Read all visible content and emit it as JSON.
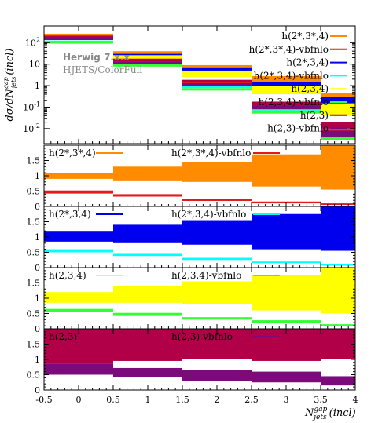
{
  "chart_data": {
    "type": "histogram_with_ratio_panels",
    "x_bins": [
      -0.5,
      0.5,
      1.5,
      2.5,
      3.5,
      4.0
    ],
    "xlim": [
      -0.5,
      4.0
    ],
    "x_ticks": [
      "-0.5",
      "0",
      "0.5",
      "1",
      "1.5",
      "2",
      "2.5",
      "3",
      "3.5",
      "4"
    ],
    "xlabel_main": "N",
    "xlabel_sup": "gap",
    "xlabel_sub": "jets",
    "xlabel_tail": "(incl)",
    "ylabel_main": "dσ/dN",
    "ylabel_sup": "gap",
    "ylabel_sub": "jets",
    "ylabel_tail": "(incl)",
    "main_y_scale": "log",
    "main_ylim": [
      0.002,
      600
    ],
    "main_y_ticks": [
      {
        "base": "10",
        "exp": "-2",
        "v": 0.01
      },
      {
        "base": "10",
        "exp": "-1",
        "v": 0.1
      },
      {
        "base": "1",
        "exp": "",
        "v": 1
      },
      {
        "base": "10",
        "exp": "",
        "v": 10
      },
      {
        "base": "10",
        "exp": "2",
        "v": 100
      }
    ],
    "generator_label": "Herwig 7.x.x",
    "generator_sublabel": "HJETS/ColorFull",
    "main_series": [
      {
        "name": "h(2*,3*,4)",
        "color": "#ff8c00",
        "lo": [
          140,
          22,
          4.5,
          0.9,
          0.13
        ],
        "hi": [
          260,
          40,
          9,
          2.8,
          0.45
        ]
      },
      {
        "name": "h(2*,3*,4)-vbfnlo",
        "color": "#e31a1c",
        "lo": [
          185,
          16,
          1.2,
          0.11,
          0.006
        ],
        "hi": [
          200,
          18,
          1.45,
          0.14,
          0.009
        ]
      },
      {
        "name": "h(2*,3,4)",
        "color": "#0000ee",
        "lo": [
          180,
          20,
          3.5,
          0.6,
          0.1
        ],
        "hi": [
          230,
          30,
          6.5,
          1.5,
          0.3
        ]
      },
      {
        "name": "h(2*,3,4)-vbfnlo",
        "color": "#00ffff",
        "lo": [
          105,
          9,
          0.8,
          0.07,
          0.005
        ],
        "hi": [
          115,
          10,
          0.95,
          0.09,
          0.007
        ]
      },
      {
        "name": "h(2,3,4)",
        "color": "#ffff00",
        "lo": [
          170,
          18,
          2.5,
          0.4,
          0.04
        ],
        "hi": [
          210,
          26,
          5.0,
          1.0,
          0.15
        ]
      },
      {
        "name": "h(2,3,4)-vbfnlo",
        "color": "#33ff33",
        "lo": [
          95,
          8,
          0.6,
          0.05,
          0.003
        ],
        "hi": [
          110,
          9.5,
          0.75,
          0.07,
          0.005
        ]
      },
      {
        "name": "h(2,3)",
        "color": "#b10048",
        "lo": [
          175,
          14,
          1.5,
          0.12,
          0.01
        ],
        "hi": [
          195,
          17,
          1.8,
          0.18,
          0.02
        ]
      },
      {
        "name": "h(2,3)-vbfnlo",
        "color": "#7b0a7b",
        "lo": [
          140,
          11,
          1.0,
          0.08,
          0.004
        ],
        "hi": [
          160,
          13,
          1.3,
          0.12,
          0.008
        ]
      }
    ],
    "ratio_ylim": [
      0,
      2.0
    ],
    "ratio_y_ticks": [
      "0",
      "0.5",
      "1",
      "1.5"
    ],
    "ratio_panels": [
      {
        "labels": [
          "h(2*,3*,4)",
          "h(2*,3*,4)-vbfnlo"
        ],
        "bands": [
          {
            "color": "#ff8c00",
            "lo": [
              0.9,
              0.85,
              0.8,
              0.65,
              0.55
            ],
            "hi": [
              1.1,
              1.3,
              1.45,
              1.7,
              2.0
            ]
          },
          {
            "color": "#e31a1c",
            "lo": [
              0.42,
              0.32,
              0.18,
              0.1,
              0.05
            ],
            "hi": [
              0.52,
              0.4,
              0.25,
              0.16,
              0.1
            ]
          }
        ]
      },
      {
        "labels": [
          "h(2*,3,4)",
          "h(2*,3,4)-vbfnlo"
        ],
        "bands": [
          {
            "color": "#0000ee",
            "lo": [
              0.85,
              0.8,
              0.75,
              0.6,
              0.55
            ],
            "hi": [
              1.2,
              1.4,
              1.55,
              1.75,
              2.0
            ]
          },
          {
            "color": "#00ffff",
            "lo": [
              0.5,
              0.38,
              0.25,
              0.15,
              0.08
            ],
            "hi": [
              0.6,
              0.45,
              0.32,
              0.2,
              0.12
            ]
          }
        ]
      },
      {
        "labels": [
          "h(2,3,4)",
          "h(2,3,4)-vbfnlo"
        ],
        "bands": [
          {
            "color": "#ffff00",
            "lo": [
              0.85,
              0.85,
              0.8,
              0.6,
              0.5
            ],
            "hi": [
              1.2,
              1.4,
              1.55,
              1.75,
              2.0
            ]
          },
          {
            "color": "#33ff33",
            "lo": [
              0.55,
              0.42,
              0.3,
              0.2,
              0.1
            ],
            "hi": [
              0.65,
              0.52,
              0.38,
              0.28,
              0.15
            ]
          }
        ]
      },
      {
        "labels": [
          "h(2,3)",
          "h(2,3)-vbfnlo"
        ],
        "bands": [
          {
            "color": "#b10048",
            "lo": [
              0.85,
              0.95,
              1.0,
              0.95,
              1.0
            ],
            "hi": [
              2.0,
              2.0,
              2.0,
              2.0,
              2.0
            ]
          },
          {
            "color": "#7b0a7b",
            "lo": [
              0.5,
              0.42,
              0.3,
              0.25,
              0.15
            ],
            "hi": [
              0.85,
              0.72,
              0.65,
              0.6,
              0.45
            ]
          }
        ]
      }
    ]
  }
}
